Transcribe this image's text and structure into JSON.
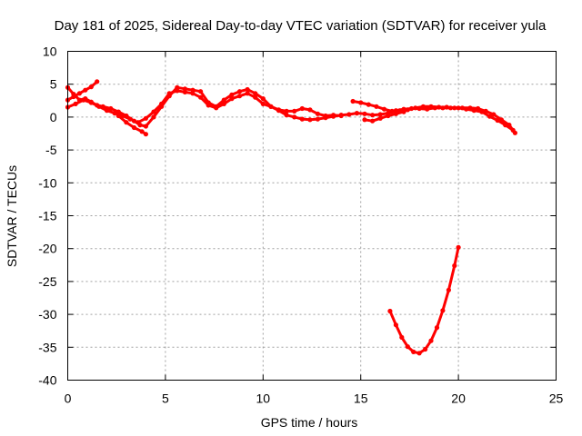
{
  "chart_data": {
    "type": "scatter",
    "title": "Day 181 of 2025, Sidereal Day-to-day VTEC variation (SDTVAR) for receiver yula",
    "xlabel": "GPS time / hours",
    "ylabel": "SDTVAR / TECUs",
    "xlim": [
      0,
      25
    ],
    "ylim": [
      -40,
      10
    ],
    "xticks": [
      0,
      5,
      10,
      15,
      20,
      25
    ],
    "yticks": [
      -40,
      -35,
      -30,
      -25,
      -20,
      -15,
      -10,
      -5,
      0,
      5,
      10
    ],
    "xtick_labels": [
      "0",
      "5",
      "10",
      "15",
      "20",
      "25"
    ],
    "ytick_labels": [
      "-40",
      "-35",
      "-30",
      "-25",
      "-20",
      "-15",
      "-10",
      "-5",
      "0",
      "5",
      "10"
    ],
    "grid": true,
    "legend": "none",
    "color": "#ff0000",
    "series": [
      {
        "name": "track-upper-a",
        "x": [
          0.0,
          0.3,
          0.6,
          0.9,
          1.2,
          1.5,
          1.8,
          2.2,
          2.6,
          3.0,
          3.4,
          3.7,
          4.0,
          4.4,
          4.8,
          5.2,
          5.6,
          6.0,
          6.4,
          6.8,
          7.2,
          7.6,
          8.0,
          8.4,
          8.8,
          9.2,
          9.6,
          10.0,
          10.4,
          10.8,
          11.2,
          11.6,
          12.0,
          12.4,
          12.8,
          13.2,
          13.6,
          14.0
        ],
        "y": [
          4.5,
          3.5,
          2.6,
          2.8,
          2.3,
          1.8,
          1.6,
          1.3,
          0.8,
          0.2,
          -0.6,
          -1.2,
          -1.4,
          0.0,
          1.6,
          3.2,
          4.5,
          4.3,
          4.1,
          3.9,
          2.2,
          1.6,
          2.6,
          3.4,
          3.9,
          4.2,
          3.6,
          2.8,
          1.6,
          1.1,
          0.9,
          0.9,
          1.3,
          1.1,
          0.5,
          0.2,
          0.3,
          0.2
        ]
      },
      {
        "name": "track-upper-b",
        "x": [
          0.0,
          0.4,
          0.8,
          1.2,
          1.6,
          2.0,
          2.4,
          2.8,
          3.2,
          3.6,
          4.0,
          4.4,
          4.8,
          5.2,
          5.6,
          6.0,
          6.4,
          6.8,
          7.2,
          7.6,
          8.0,
          8.4,
          8.8,
          9.2,
          9.6,
          10.0,
          10.4,
          10.8,
          11.2,
          11.6,
          12.0,
          12.4,
          12.8,
          13.2,
          13.6,
          14.0
        ],
        "y": [
          1.5,
          2.0,
          2.6,
          2.2,
          1.6,
          1.0,
          0.6,
          0.2,
          -0.3,
          -0.8,
          -0.2,
          0.8,
          2.0,
          3.6,
          4.0,
          3.8,
          3.6,
          3.0,
          1.8,
          1.4,
          2.0,
          2.8,
          3.2,
          3.6,
          3.0,
          2.0,
          1.6,
          1.0,
          0.3,
          0.0,
          -0.3,
          -0.4,
          -0.3,
          -0.1,
          0.1,
          0.3
        ]
      },
      {
        "name": "track-early-rise",
        "x": [
          0.0,
          0.3,
          0.6,
          0.9,
          1.2,
          1.5
        ],
        "y": [
          2.6,
          3.1,
          3.6,
          4.1,
          4.6,
          5.4
        ]
      },
      {
        "name": "track-early-dip",
        "x": [
          2.6,
          3.0,
          3.4,
          3.8,
          4.0
        ],
        "y": [
          0.2,
          -0.8,
          -1.6,
          -2.2,
          -2.6
        ]
      },
      {
        "name": "track-mid-a",
        "x": [
          14.0,
          14.4,
          14.8,
          15.2,
          15.6,
          16.0,
          16.4,
          16.8,
          17.2,
          17.6,
          18.0,
          18.4,
          18.8,
          19.2,
          19.6,
          20.0,
          20.4,
          20.8,
          21.2,
          21.6,
          22.0,
          22.4,
          22.8
        ],
        "y": [
          0.3,
          0.4,
          0.6,
          0.5,
          0.3,
          0.4,
          0.6,
          1.0,
          1.2,
          1.3,
          1.3,
          1.2,
          1.4,
          1.4,
          1.4,
          1.4,
          1.2,
          1.0,
          0.8,
          0.1,
          -0.5,
          -1.2,
          -2.0
        ]
      },
      {
        "name": "track-mid-b",
        "x": [
          14.6,
          15.0,
          15.4,
          15.8,
          16.2,
          16.6,
          17.0,
          17.4,
          17.8,
          18.2,
          18.6,
          19.0,
          19.4,
          19.8,
          20.2,
          20.6,
          21.0,
          21.4,
          21.8,
          22.2,
          22.6,
          22.9
        ],
        "y": [
          2.4,
          2.2,
          1.9,
          1.6,
          1.2,
          0.9,
          1.0,
          1.1,
          1.4,
          1.6,
          1.6,
          1.5,
          1.5,
          1.4,
          1.4,
          1.4,
          1.3,
          0.9,
          0.4,
          -0.4,
          -1.2,
          -2.4
        ]
      },
      {
        "name": "track-mid-c",
        "x": [
          15.2,
          15.6,
          16.0,
          16.4,
          16.8,
          17.2
        ],
        "y": [
          -0.4,
          -0.6,
          -0.2,
          0.2,
          0.5,
          0.8
        ]
      },
      {
        "name": "track-outlier-arc",
        "x": [
          16.5,
          16.8,
          17.1,
          17.4,
          17.7,
          18.0,
          18.3,
          18.6,
          18.9,
          19.2,
          19.5,
          19.8,
          20.0
        ],
        "y": [
          -29.5,
          -31.6,
          -33.5,
          -34.9,
          -35.7,
          -35.9,
          -35.3,
          -34.0,
          -32.0,
          -29.4,
          -26.3,
          -22.6,
          -19.8
        ]
      }
    ]
  }
}
